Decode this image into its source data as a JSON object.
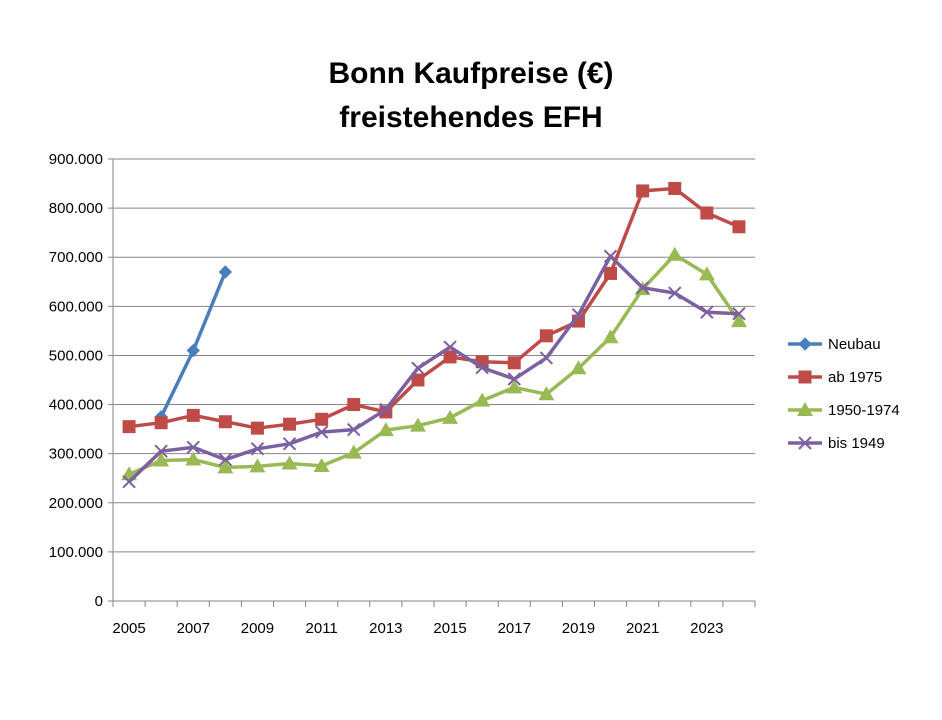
{
  "chart_data": {
    "type": "line",
    "title_lines": [
      "Bonn Kaufpreise (€)",
      "freistehendes EFH"
    ],
    "x_ticks": [
      "2005",
      "2007",
      "2009",
      "2011",
      "2013",
      "2015",
      "2017",
      "2019",
      "2021",
      "2023"
    ],
    "y_ticks": [
      "0",
      "100.000",
      "200.000",
      "300.000",
      "400.000",
      "500.000",
      "600.000",
      "700.000",
      "800.000",
      "900.000"
    ],
    "xlim": [
      2004.5,
      2024.5
    ],
    "ylim": [
      0,
      900000
    ],
    "grid": "horizontal",
    "legend_position": "right",
    "series": [
      {
        "name": "Neubau",
        "color": "#4a7ebb",
        "marker": "diamond",
        "x": [
          2006,
          2007,
          2008
        ],
        "values": [
          375000,
          510000,
          670000
        ]
      },
      {
        "name": "ab 1975",
        "color": "#be4b48",
        "marker": "square",
        "x": [
          2005,
          2006,
          2007,
          2008,
          2009,
          2010,
          2011,
          2012,
          2013,
          2014,
          2015,
          2016,
          2017,
          2018,
          2019,
          2020,
          2021,
          2022,
          2023,
          2024
        ],
        "values": [
          355000,
          363000,
          378000,
          365000,
          352000,
          360000,
          370000,
          400000,
          385000,
          450000,
          497000,
          487000,
          485000,
          540000,
          570000,
          667000,
          835000,
          840000,
          790000,
          762000
        ]
      },
      {
        "name": "1950-1974",
        "color": "#98b954",
        "marker": "triangle",
        "x": [
          2005,
          2006,
          2007,
          2008,
          2009,
          2010,
          2011,
          2012,
          2013,
          2014,
          2015,
          2016,
          2017,
          2018,
          2019,
          2020,
          2021,
          2022,
          2023,
          2024
        ],
        "values": [
          258000,
          286000,
          288000,
          272000,
          274000,
          280000,
          275000,
          302000,
          348000,
          357000,
          373000,
          408000,
          435000,
          421000,
          474000,
          537000,
          635000,
          705000,
          665000,
          570000
        ]
      },
      {
        "name": "bis 1949",
        "color": "#7d60a0",
        "marker": "x",
        "x": [
          2005,
          2006,
          2007,
          2008,
          2009,
          2010,
          2011,
          2012,
          2013,
          2014,
          2015,
          2016,
          2017,
          2018,
          2019,
          2020,
          2021,
          2022,
          2023,
          2024
        ],
        "values": [
          243000,
          305000,
          313000,
          288000,
          310000,
          320000,
          344000,
          349000,
          390000,
          474000,
          517000,
          475000,
          452000,
          495000,
          583000,
          702000,
          638000,
          627000,
          588000,
          585000
        ]
      }
    ]
  }
}
